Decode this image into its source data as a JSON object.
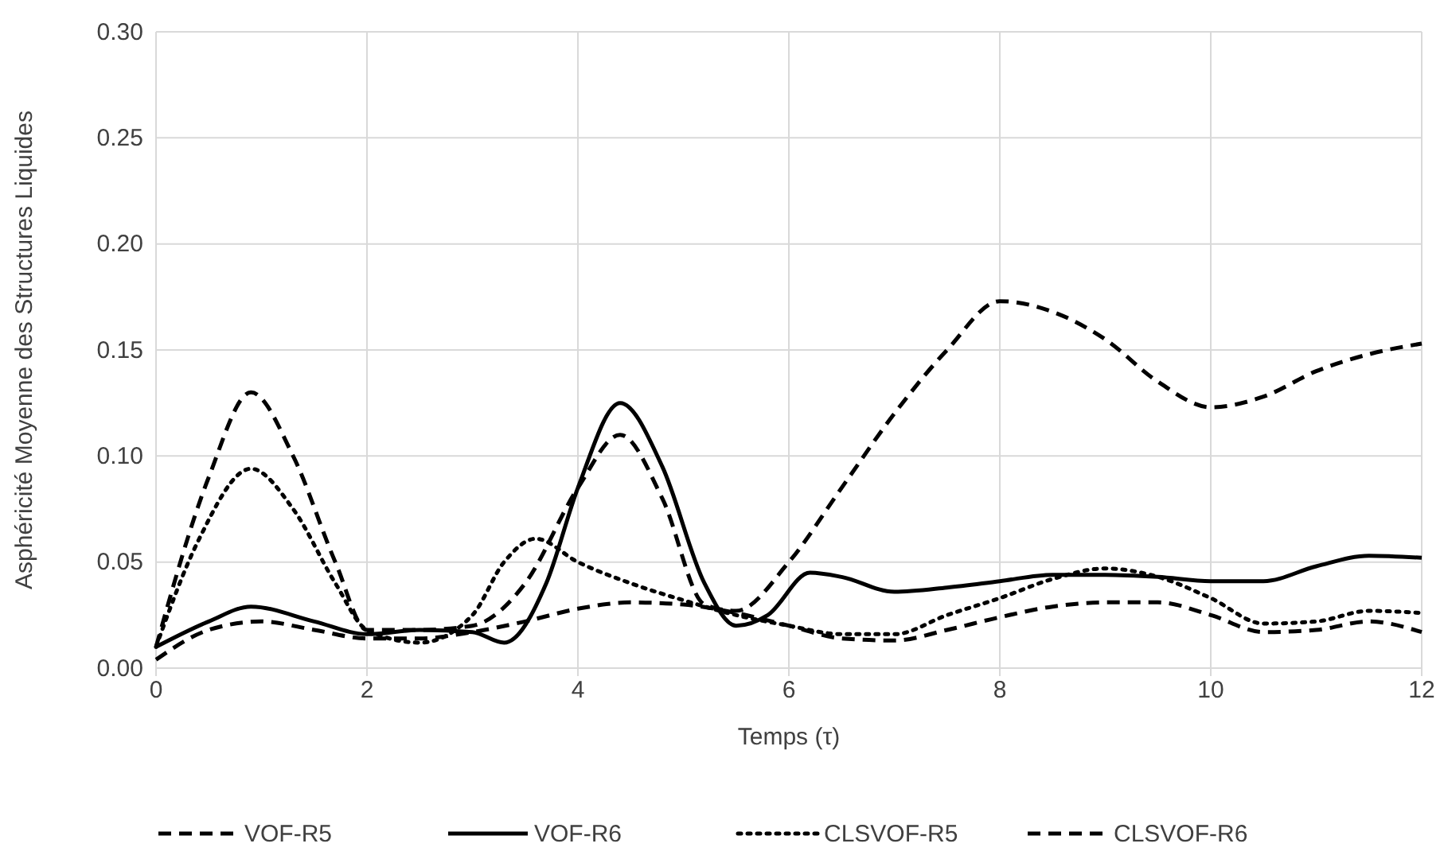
{
  "chart_data": {
    "type": "line",
    "xlabel": "Temps (τ)",
    "ylabel": "Asphéricité Moyenne  des Structures Liquides",
    "xlim": [
      0,
      12
    ],
    "xticks": [
      0,
      2,
      4,
      6,
      8,
      10,
      12
    ],
    "ylim": [
      0,
      0.3
    ],
    "yticks": [
      {
        "value": 0,
        "label": "0.00"
      },
      {
        "value": 0.05,
        "label": "0.05"
      },
      {
        "value": 0.1,
        "label": "0.10"
      },
      {
        "value": 0.15,
        "label": "0.15"
      },
      {
        "value": 0.2,
        "label": "0.20"
      },
      {
        "value": 0.25,
        "label": "0.25"
      },
      {
        "value": 0.3,
        "label": "0.30"
      }
    ],
    "grid": true,
    "legend": "bottom",
    "marker": "none",
    "series": [
      {
        "name": "VOF-R5",
        "color": "#000000",
        "line_style": "dashed",
        "x": [
          0,
          0.5,
          0.9,
          1.3,
          1.7,
          2,
          2.5,
          3,
          3.5,
          4,
          4.4,
          4.8,
          5.2,
          5.5,
          6,
          6.5,
          7,
          7.5,
          8,
          8.5,
          9,
          9.5,
          10,
          10.5,
          11,
          11.5,
          12
        ],
        "values": [
          0.01,
          0.09,
          0.13,
          0.1,
          0.05,
          0.018,
          0.018,
          0.02,
          0.04,
          0.085,
          0.11,
          0.08,
          0.03,
          0.027,
          0.05,
          0.085,
          0.12,
          0.15,
          0.173,
          0.168,
          0.155,
          0.135,
          0.123,
          0.128,
          0.14,
          0.148,
          0.153
        ]
      },
      {
        "name": "VOF-R6",
        "color": "#000000",
        "line_style": "solid",
        "x": [
          0,
          0.5,
          0.9,
          1.5,
          2,
          2.5,
          3,
          3.3,
          3.7,
          4,
          4.4,
          4.8,
          5.2,
          5.5,
          5.8,
          6.2,
          6.5,
          7,
          7.5,
          8,
          8.5,
          9,
          9.5,
          10,
          10.5,
          11,
          11.5,
          12
        ],
        "values": [
          0.01,
          0.022,
          0.029,
          0.022,
          0.016,
          0.018,
          0.017,
          0.012,
          0.04,
          0.085,
          0.125,
          0.095,
          0.04,
          0.02,
          0.025,
          0.045,
          0.043,
          0.036,
          0.038,
          0.041,
          0.044,
          0.044,
          0.043,
          0.041,
          0.041,
          0.048,
          0.053,
          0.052
        ]
      },
      {
        "name": "CLSVOF-R5",
        "color": "#000000",
        "line_style": "dotted",
        "x": [
          0,
          0.4,
          0.9,
          1.3,
          1.7,
          2,
          2.5,
          3,
          3.3,
          3.6,
          4,
          4.5,
          5,
          5.5,
          6,
          6.5,
          7,
          7.5,
          8,
          8.5,
          9,
          9.5,
          10,
          10.5,
          11,
          11.5,
          12
        ],
        "values": [
          0.01,
          0.06,
          0.094,
          0.075,
          0.04,
          0.018,
          0.012,
          0.025,
          0.05,
          0.061,
          0.05,
          0.04,
          0.032,
          0.025,
          0.02,
          0.016,
          0.016,
          0.025,
          0.033,
          0.042,
          0.047,
          0.043,
          0.033,
          0.021,
          0.022,
          0.027,
          0.026
        ]
      },
      {
        "name": "CLSVOF-R6",
        "color": "#000000",
        "line_style": "dashed",
        "x": [
          0,
          0.5,
          1,
          1.5,
          2,
          2.5,
          3,
          3.5,
          4,
          4.5,
          5,
          5.5,
          6,
          6.5,
          7,
          7.5,
          8,
          8.5,
          9,
          9.5,
          10,
          10.5,
          11,
          11.5,
          12
        ],
        "values": [
          0.004,
          0.018,
          0.022,
          0.018,
          0.014,
          0.014,
          0.017,
          0.022,
          0.028,
          0.031,
          0.03,
          0.026,
          0.02,
          0.014,
          0.013,
          0.018,
          0.024,
          0.029,
          0.031,
          0.031,
          0.025,
          0.017,
          0.018,
          0.022,
          0.017
        ]
      }
    ]
  }
}
